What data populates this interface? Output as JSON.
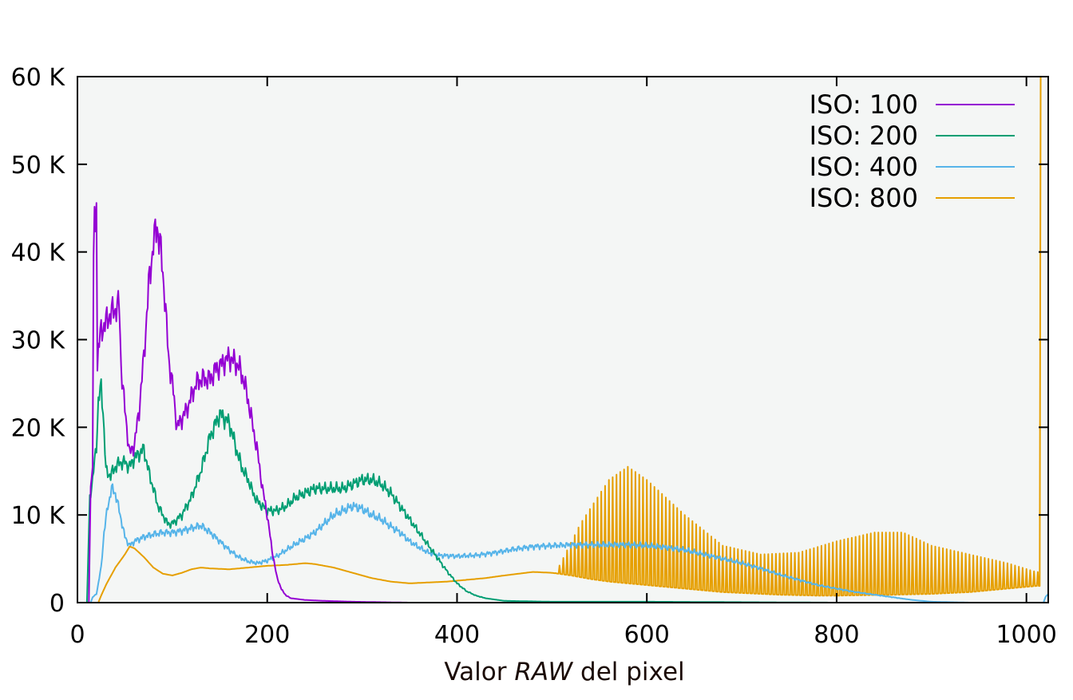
{
  "chart_data": {
    "type": "line",
    "title": "",
    "xlabel_parts": [
      "Valor ",
      "RAW",
      " del pixel"
    ],
    "ylabel": "",
    "xlim": [
      0,
      1023
    ],
    "ylim": [
      0,
      60000
    ],
    "x_ticks": [
      0,
      200,
      400,
      600,
      800,
      1000
    ],
    "x_tick_labels": [
      "0",
      "200",
      "400",
      "600",
      "800",
      "1000"
    ],
    "y_ticks": [
      0,
      10000,
      20000,
      30000,
      40000,
      50000,
      60000
    ],
    "y_tick_labels": [
      "0",
      "10 K",
      "20 K",
      "30 K",
      "40 K",
      "50 K",
      "60 K"
    ],
    "grid": false,
    "legend_position": "top-right",
    "background": "#f4f6f5",
    "series": [
      {
        "name": "ISO: 100",
        "color": "#9400d3",
        "points": [
          [
            0,
            0
          ],
          [
            12,
            0
          ],
          [
            14,
            14000
          ],
          [
            16,
            15000
          ],
          [
            17,
            40000
          ],
          [
            18,
            44000
          ],
          [
            19,
            41000
          ],
          [
            20,
            48000
          ],
          [
            21,
            27000
          ],
          [
            22,
            29000
          ],
          [
            25,
            31000
          ],
          [
            30,
            32000
          ],
          [
            35,
            33000
          ],
          [
            40,
            33500
          ],
          [
            44,
            34000
          ],
          [
            46,
            27000
          ],
          [
            50,
            22000
          ],
          [
            55,
            17000
          ],
          [
            60,
            18000
          ],
          [
            65,
            22000
          ],
          [
            70,
            28000
          ],
          [
            75,
            36000
          ],
          [
            80,
            41000
          ],
          [
            84,
            43000
          ],
          [
            88,
            40000
          ],
          [
            92,
            35000
          ],
          [
            96,
            28000
          ],
          [
            100,
            25000
          ],
          [
            105,
            20000
          ],
          [
            110,
            21000
          ],
          [
            115,
            22000
          ],
          [
            120,
            23500
          ],
          [
            125,
            25000
          ],
          [
            130,
            25500
          ],
          [
            135,
            25500
          ],
          [
            140,
            25500
          ],
          [
            145,
            26500
          ],
          [
            150,
            27000
          ],
          [
            155,
            27500
          ],
          [
            160,
            28000
          ],
          [
            165,
            27500
          ],
          [
            170,
            27000
          ],
          [
            175,
            25500
          ],
          [
            180,
            23000
          ],
          [
            185,
            20000
          ],
          [
            190,
            17000
          ],
          [
            195,
            13000
          ],
          [
            200,
            10000
          ],
          [
            205,
            6000
          ],
          [
            210,
            3000
          ],
          [
            215,
            1500
          ],
          [
            220,
            800
          ],
          [
            225,
            500
          ],
          [
            240,
            300
          ],
          [
            260,
            200
          ],
          [
            290,
            100
          ],
          [
            350,
            0
          ],
          [
            1023,
            0
          ]
        ]
      },
      {
        "name": "ISO: 200",
        "color": "#009e73",
        "points": [
          [
            0,
            0
          ],
          [
            10,
            0
          ],
          [
            13,
            12000
          ],
          [
            16,
            14000
          ],
          [
            20,
            18000
          ],
          [
            22,
            23000
          ],
          [
            25,
            24500
          ],
          [
            27,
            22000
          ],
          [
            30,
            15000
          ],
          [
            35,
            14500
          ],
          [
            40,
            15500
          ],
          [
            45,
            16000
          ],
          [
            50,
            16000
          ],
          [
            55,
            15500
          ],
          [
            60,
            16500
          ],
          [
            65,
            17000
          ],
          [
            70,
            17500
          ],
          [
            75,
            15000
          ],
          [
            80,
            13000
          ],
          [
            85,
            11000
          ],
          [
            90,
            10000
          ],
          [
            95,
            9000
          ],
          [
            100,
            9000
          ],
          [
            110,
            10000
          ],
          [
            120,
            12000
          ],
          [
            130,
            15000
          ],
          [
            140,
            19000
          ],
          [
            150,
            21500
          ],
          [
            155,
            21000
          ],
          [
            160,
            20500
          ],
          [
            165,
            18500
          ],
          [
            170,
            16500
          ],
          [
            175,
            15000
          ],
          [
            180,
            14000
          ],
          [
            185,
            12500
          ],
          [
            190,
            11500
          ],
          [
            200,
            10500
          ],
          [
            210,
            10500
          ],
          [
            220,
            11000
          ],
          [
            230,
            12000
          ],
          [
            240,
            12500
          ],
          [
            250,
            13000
          ],
          [
            260,
            13000
          ],
          [
            270,
            13000
          ],
          [
            280,
            13000
          ],
          [
            290,
            13500
          ],
          [
            300,
            14000
          ],
          [
            310,
            14000
          ],
          [
            320,
            13500
          ],
          [
            330,
            12500
          ],
          [
            340,
            11000
          ],
          [
            350,
            9500
          ],
          [
            360,
            8000
          ],
          [
            370,
            6500
          ],
          [
            380,
            5000
          ],
          [
            390,
            3500
          ],
          [
            400,
            2200
          ],
          [
            410,
            1300
          ],
          [
            420,
            800
          ],
          [
            430,
            500
          ],
          [
            450,
            200
          ],
          [
            500,
            100
          ],
          [
            600,
            100
          ],
          [
            700,
            50
          ],
          [
            800,
            0
          ],
          [
            1023,
            0
          ]
        ]
      },
      {
        "name": "ISO: 400",
        "color": "#56b4e9",
        "points": [
          [
            0,
            0
          ],
          [
            14,
            0
          ],
          [
            16,
            600
          ],
          [
            20,
            1000
          ],
          [
            25,
            4000
          ],
          [
            28,
            8000
          ],
          [
            32,
            11000
          ],
          [
            36,
            13000
          ],
          [
            40,
            12500
          ],
          [
            45,
            10000
          ],
          [
            50,
            7500
          ],
          [
            55,
            6500
          ],
          [
            60,
            7000
          ],
          [
            70,
            7500
          ],
          [
            80,
            7800
          ],
          [
            90,
            8000
          ],
          [
            100,
            8000
          ],
          [
            110,
            8200
          ],
          [
            120,
            8500
          ],
          [
            130,
            8800
          ],
          [
            140,
            8000
          ],
          [
            150,
            7000
          ],
          [
            160,
            6000
          ],
          [
            170,
            5200
          ],
          [
            180,
            4700
          ],
          [
            190,
            4500
          ],
          [
            200,
            4800
          ],
          [
            210,
            5300
          ],
          [
            220,
            6000
          ],
          [
            230,
            6700
          ],
          [
            240,
            7300
          ],
          [
            250,
            8000
          ],
          [
            260,
            9000
          ],
          [
            270,
            10000
          ],
          [
            280,
            10500
          ],
          [
            290,
            11000
          ],
          [
            300,
            10700
          ],
          [
            310,
            10000
          ],
          [
            320,
            9500
          ],
          [
            330,
            8700
          ],
          [
            340,
            8000
          ],
          [
            350,
            7000
          ],
          [
            360,
            6300
          ],
          [
            370,
            5700
          ],
          [
            380,
            5400
          ],
          [
            400,
            5300
          ],
          [
            420,
            5400
          ],
          [
            440,
            5700
          ],
          [
            460,
            6100
          ],
          [
            480,
            6400
          ],
          [
            500,
            6500
          ],
          [
            520,
            6600
          ],
          [
            540,
            6600
          ],
          [
            560,
            6600
          ],
          [
            580,
            6600
          ],
          [
            600,
            6500
          ],
          [
            620,
            6300
          ],
          [
            640,
            6000
          ],
          [
            660,
            5500
          ],
          [
            680,
            5000
          ],
          [
            700,
            4500
          ],
          [
            720,
            3900
          ],
          [
            740,
            3200
          ],
          [
            760,
            2600
          ],
          [
            780,
            2000
          ],
          [
            800,
            1600
          ],
          [
            820,
            1200
          ],
          [
            840,
            900
          ],
          [
            860,
            600
          ],
          [
            880,
            300
          ],
          [
            900,
            100
          ],
          [
            940,
            0
          ],
          [
            1018,
            0
          ],
          [
            1020,
            600
          ],
          [
            1023,
            1000
          ]
        ]
      },
      {
        "name": "ISO: 800",
        "color": "#e69f00",
        "osc": [
          [
            430,
            0
          ],
          [
            500,
            2500
          ],
          [
            530,
            9000
          ],
          [
            560,
            14000
          ],
          [
            580,
            15500
          ],
          [
            600,
            14000
          ],
          [
            640,
            10000
          ],
          [
            680,
            6500
          ],
          [
            720,
            5500
          ],
          [
            760,
            5700
          ],
          [
            800,
            7000
          ],
          [
            840,
            8000
          ],
          [
            870,
            8000
          ],
          [
            900,
            6500
          ],
          [
            940,
            5500
          ],
          [
            980,
            4500
          ],
          [
            1010,
            3500
          ]
        ],
        "points": [
          [
            0,
            0
          ],
          [
            22,
            0
          ],
          [
            25,
            800
          ],
          [
            30,
            2000
          ],
          [
            40,
            4000
          ],
          [
            50,
            5500
          ],
          [
            55,
            6400
          ],
          [
            60,
            6200
          ],
          [
            70,
            5200
          ],
          [
            80,
            4000
          ],
          [
            90,
            3300
          ],
          [
            100,
            3100
          ],
          [
            110,
            3400
          ],
          [
            120,
            3800
          ],
          [
            130,
            4000
          ],
          [
            140,
            3900
          ],
          [
            160,
            3800
          ],
          [
            180,
            4000
          ],
          [
            200,
            4200
          ],
          [
            220,
            4300
          ],
          [
            240,
            4500
          ],
          [
            250,
            4400
          ],
          [
            270,
            4000
          ],
          [
            290,
            3400
          ],
          [
            310,
            2800
          ],
          [
            330,
            2400
          ],
          [
            350,
            2200
          ],
          [
            370,
            2300
          ],
          [
            390,
            2400
          ],
          [
            410,
            2600
          ],
          [
            430,
            2800
          ],
          [
            450,
            3100
          ],
          [
            480,
            3500
          ],
          [
            500,
            3400
          ],
          [
            520,
            3100
          ],
          [
            540,
            2700
          ],
          [
            560,
            2400
          ],
          [
            580,
            2200
          ],
          [
            600,
            2000
          ],
          [
            620,
            1800
          ],
          [
            640,
            1600
          ],
          [
            660,
            1400
          ],
          [
            680,
            1200
          ],
          [
            700,
            1100
          ],
          [
            720,
            1000
          ],
          [
            740,
            900
          ],
          [
            760,
            850
          ],
          [
            780,
            800
          ],
          [
            800,
            800
          ],
          [
            830,
            850
          ],
          [
            860,
            900
          ],
          [
            900,
            1000
          ],
          [
            940,
            1200
          ],
          [
            980,
            1600
          ],
          [
            1010,
            1900
          ],
          [
            1014,
            1900
          ],
          [
            1015,
            60000
          ],
          [
            1016,
            60000
          ],
          [
            1017,
            60000
          ]
        ]
      }
    ]
  }
}
